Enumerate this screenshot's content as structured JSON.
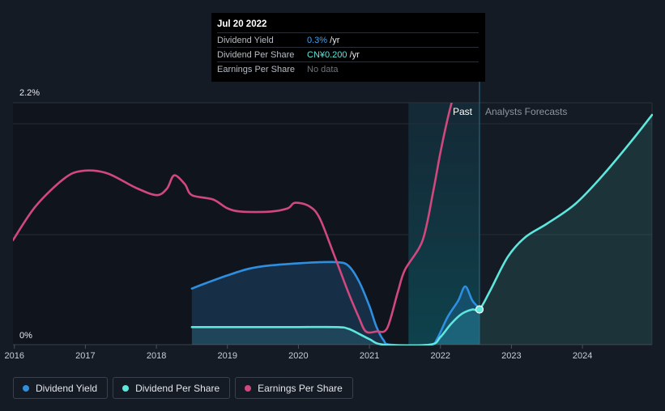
{
  "chart_data": {
    "type": "line",
    "y_axis": {
      "top_label": "2.2%",
      "bottom_label": "0%",
      "ylim": [
        0,
        2.2
      ],
      "unit": "%"
    },
    "x_axis": {
      "ticks": [
        "2016",
        "2017",
        "2018",
        "2019",
        "2020",
        "2021",
        "2022",
        "2023",
        "2024"
      ],
      "xlim": [
        2015.98,
        2024.98
      ]
    },
    "regions": {
      "past_label": "Past",
      "forecast_label": "Analysts Forecasts",
      "divider_x": 2022.55,
      "shaded_start_x": 2021.55
    },
    "series": [
      {
        "name": "Dividend Yield",
        "color": "#2e8fe0",
        "area": true,
        "points": [
          [
            2018.5,
            0.51
          ],
          [
            2018.7,
            0.56
          ],
          [
            2019.0,
            0.63
          ],
          [
            2019.3,
            0.69
          ],
          [
            2019.6,
            0.72
          ],
          [
            2020.0,
            0.74
          ],
          [
            2020.3,
            0.75
          ],
          [
            2020.55,
            0.75
          ],
          [
            2020.7,
            0.72
          ],
          [
            2020.85,
            0.58
          ],
          [
            2021.0,
            0.35
          ],
          [
            2021.1,
            0.16
          ],
          [
            2021.2,
            0.04
          ],
          [
            2021.3,
            0.0
          ],
          [
            2021.85,
            0.0
          ],
          [
            2021.95,
            0.05
          ],
          [
            2022.1,
            0.25
          ],
          [
            2022.25,
            0.4
          ],
          [
            2022.35,
            0.53
          ],
          [
            2022.45,
            0.4
          ],
          [
            2022.55,
            0.33
          ]
        ]
      },
      {
        "name": "Dividend Per Share",
        "color": "#5ee7dc",
        "area": true,
        "points": [
          [
            2018.5,
            0.16
          ],
          [
            2019.0,
            0.16
          ],
          [
            2019.5,
            0.16
          ],
          [
            2020.0,
            0.16
          ],
          [
            2020.55,
            0.16
          ],
          [
            2020.7,
            0.145
          ],
          [
            2020.85,
            0.1
          ],
          [
            2021.0,
            0.05
          ],
          [
            2021.2,
            0.0
          ],
          [
            2021.85,
            0.0
          ],
          [
            2022.0,
            0.07
          ],
          [
            2022.15,
            0.19
          ],
          [
            2022.3,
            0.28
          ],
          [
            2022.45,
            0.32
          ],
          [
            2022.55,
            0.32
          ],
          [
            2022.7,
            0.49
          ],
          [
            2022.95,
            0.8
          ],
          [
            2023.2,
            0.98
          ],
          [
            2023.5,
            1.1
          ],
          [
            2023.9,
            1.28
          ],
          [
            2024.3,
            1.55
          ],
          [
            2024.7,
            1.86
          ],
          [
            2024.98,
            2.09
          ]
        ]
      },
      {
        "name": "Earnings Per Share",
        "color": "#d0487e",
        "area": false,
        "points": [
          [
            2015.98,
            0.95
          ],
          [
            2016.3,
            1.26
          ],
          [
            2016.7,
            1.51
          ],
          [
            2016.95,
            1.58
          ],
          [
            2017.3,
            1.56
          ],
          [
            2017.7,
            1.43
          ],
          [
            2018.0,
            1.36
          ],
          [
            2018.15,
            1.42
          ],
          [
            2018.25,
            1.54
          ],
          [
            2018.4,
            1.46
          ],
          [
            2018.5,
            1.36
          ],
          [
            2018.8,
            1.32
          ],
          [
            2019.0,
            1.24
          ],
          [
            2019.2,
            1.21
          ],
          [
            2019.6,
            1.21
          ],
          [
            2019.85,
            1.24
          ],
          [
            2019.95,
            1.29
          ],
          [
            2020.15,
            1.26
          ],
          [
            2020.3,
            1.15
          ],
          [
            2020.5,
            0.82
          ],
          [
            2020.7,
            0.48
          ],
          [
            2020.85,
            0.25
          ],
          [
            2020.95,
            0.12
          ],
          [
            2021.1,
            0.12
          ],
          [
            2021.25,
            0.15
          ],
          [
            2021.4,
            0.48
          ],
          [
            2021.5,
            0.68
          ],
          [
            2021.75,
            0.95
          ],
          [
            2021.9,
            1.4
          ],
          [
            2022.0,
            1.75
          ],
          [
            2022.1,
            2.05
          ],
          [
            2022.17,
            2.23
          ],
          [
            2022.2,
            2.28
          ]
        ]
      }
    ],
    "highlight_point": {
      "x": 2022.55,
      "y": 0.32,
      "series": "Dividend Per Share"
    }
  },
  "tooltip": {
    "date": "Jul 20 2022",
    "rows": [
      {
        "label": "Dividend Yield",
        "value": "0.3%",
        "suffix": " /yr"
      },
      {
        "label": "Dividend Per Share",
        "value": "CN¥0.200",
        "suffix": " /yr"
      },
      {
        "label": "Earnings Per Share",
        "value": "No data",
        "suffix": ""
      }
    ]
  },
  "legend": [
    {
      "label": "Dividend Yield",
      "color": "#2e8fe0"
    },
    {
      "label": "Dividend Per Share",
      "color": "#5ee7dc"
    },
    {
      "label": "Earnings Per Share",
      "color": "#d0487e"
    }
  ]
}
